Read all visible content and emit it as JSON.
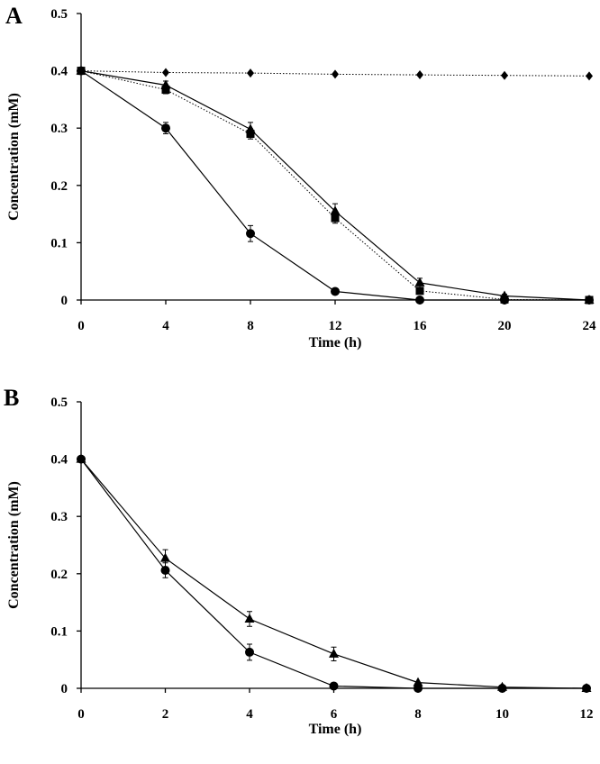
{
  "chart_data": [
    {
      "type": "line",
      "panel_label": "A",
      "xlabel": "Time (h)",
      "ylabel": "Concentration (mM)",
      "xlim": [
        0,
        24
      ],
      "ylim": [
        0,
        0.5
      ],
      "xticks": [
        0,
        4,
        8,
        12,
        16,
        20,
        24
      ],
      "yticks": [
        0,
        0.1,
        0.2,
        0.3,
        0.4,
        0.5
      ],
      "ytick_labels": [
        "0",
        "0.1",
        "0.2",
        "0.3",
        "0.4",
        "0.5"
      ],
      "grid": false,
      "series": [
        {
          "name": "diamond",
          "marker": "diamond",
          "line": "dotted",
          "x": [
            0,
            4,
            8,
            12,
            16,
            20,
            24
          ],
          "y": [
            0.4,
            0.397,
            0.396,
            0.394,
            0.393,
            0.392,
            0.391
          ],
          "err": [
            0,
            0,
            0,
            0,
            0,
            0,
            0
          ]
        },
        {
          "name": "square",
          "marker": "square",
          "line": "dotted",
          "x": [
            0,
            4,
            8,
            12,
            16,
            20,
            24
          ],
          "y": [
            0.4,
            0.367,
            0.29,
            0.143,
            0.016,
            0.001,
            0.0
          ],
          "err": [
            0,
            0.007,
            0.009,
            0.009,
            0.006,
            0,
            0
          ]
        },
        {
          "name": "triangle",
          "marker": "triangle",
          "line": "solid",
          "x": [
            0,
            4,
            8,
            12,
            16,
            20,
            24
          ],
          "y": [
            0.4,
            0.375,
            0.298,
            0.155,
            0.03,
            0.007,
            0.0
          ],
          "err": [
            0,
            0.007,
            0.012,
            0.013,
            0.008,
            0.003,
            0
          ]
        },
        {
          "name": "circle",
          "marker": "circle",
          "line": "solid",
          "x": [
            0,
            4,
            8,
            12,
            16,
            20,
            24
          ],
          "y": [
            0.4,
            0.3,
            0.116,
            0.015,
            0.0,
            0.0,
            0.0
          ],
          "err": [
            0,
            0.01,
            0.014,
            0.004,
            0,
            0,
            0
          ]
        }
      ]
    },
    {
      "type": "line",
      "panel_label": "B",
      "xlabel": "Time (h)",
      "ylabel": "Concentration (mM)",
      "xlim": [
        0,
        12
      ],
      "ylim": [
        0,
        0.5
      ],
      "xticks": [
        0,
        2,
        4,
        6,
        8,
        10,
        12
      ],
      "yticks": [
        0,
        0.1,
        0.2,
        0.3,
        0.4,
        0.5
      ],
      "ytick_labels": [
        "0",
        "0.1",
        "0.2",
        "0.3",
        "0.4",
        "0.5"
      ],
      "grid": false,
      "series": [
        {
          "name": "triangle",
          "marker": "triangle",
          "line": "solid",
          "x": [
            0,
            2,
            4,
            6,
            8,
            10,
            12
          ],
          "y": [
            0.4,
            0.227,
            0.121,
            0.06,
            0.01,
            0.002,
            0.0
          ],
          "err": [
            0,
            0.015,
            0.013,
            0.012,
            0,
            0,
            0
          ]
        },
        {
          "name": "circle",
          "marker": "circle",
          "line": "solid",
          "x": [
            0,
            2,
            4,
            6,
            8,
            10,
            12
          ],
          "y": [
            0.4,
            0.206,
            0.063,
            0.004,
            0.0,
            0.0,
            0.0
          ],
          "err": [
            0,
            0.013,
            0.014,
            0,
            0,
            0,
            0
          ]
        }
      ]
    }
  ]
}
